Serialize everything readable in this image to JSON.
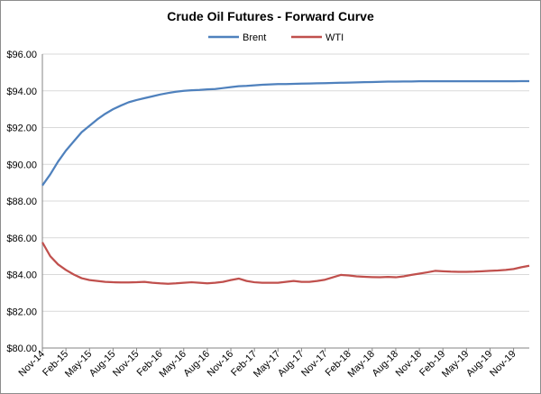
{
  "chart_data": {
    "type": "line",
    "title": "Crude Oil Futures - Forward Curve",
    "legend_position": "top-center",
    "grid": true,
    "ylim": [
      80,
      96
    ],
    "ytick_labels": [
      "$80.00",
      "$82.00",
      "$84.00",
      "$86.00",
      "$88.00",
      "$90.00",
      "$92.00",
      "$94.00",
      "$96.00"
    ],
    "yticks": [
      80,
      82,
      84,
      86,
      88,
      90,
      92,
      94,
      96
    ],
    "xtick_labels": [
      "Nov-14",
      "Feb-15",
      "May-15",
      "Aug-15",
      "Nov-15",
      "Feb-16",
      "May-16",
      "Aug-16",
      "Nov-16",
      "Feb-17",
      "May-17",
      "Aug-17",
      "Nov-17",
      "Feb-18",
      "May-18",
      "Aug-18",
      "Nov-18",
      "Feb-19",
      "May-19",
      "Aug-19",
      "Nov-19"
    ],
    "x_start": "Nov-14",
    "x_count": 63,
    "xtick_every": 3,
    "series": [
      {
        "name": "Brent",
        "color": "#4f81bd",
        "values": [
          88.85,
          89.45,
          90.15,
          90.75,
          91.25,
          91.75,
          92.1,
          92.45,
          92.75,
          93.0,
          93.2,
          93.38,
          93.5,
          93.6,
          93.7,
          93.8,
          93.88,
          93.95,
          94.0,
          94.03,
          94.05,
          94.08,
          94.1,
          94.15,
          94.2,
          94.25,
          94.27,
          94.3,
          94.33,
          94.35,
          94.37,
          94.37,
          94.38,
          94.39,
          94.4,
          94.41,
          94.42,
          94.43,
          94.44,
          94.45,
          94.46,
          94.47,
          94.48,
          94.49,
          94.5,
          94.5,
          94.51,
          94.51,
          94.52,
          94.52,
          94.52,
          94.52,
          94.52,
          94.52,
          94.52,
          94.52,
          94.52,
          94.52,
          94.52,
          94.52,
          94.52,
          94.53,
          94.53
        ]
      },
      {
        "name": "WTI",
        "color": "#c0504d",
        "values": [
          85.75,
          85.0,
          84.55,
          84.25,
          84.0,
          83.8,
          83.7,
          83.65,
          83.6,
          83.58,
          83.57,
          83.57,
          83.58,
          83.6,
          83.55,
          83.52,
          83.5,
          83.52,
          83.55,
          83.58,
          83.55,
          83.52,
          83.55,
          83.6,
          83.7,
          83.78,
          83.65,
          83.58,
          83.55,
          83.55,
          83.55,
          83.6,
          83.65,
          83.6,
          83.6,
          83.65,
          83.72,
          83.85,
          83.98,
          83.95,
          83.9,
          83.88,
          83.86,
          83.85,
          83.87,
          83.85,
          83.9,
          83.98,
          84.05,
          84.12,
          84.2,
          84.18,
          84.16,
          84.15,
          84.15,
          84.16,
          84.18,
          84.2,
          84.22,
          84.25,
          84.3,
          84.4,
          84.48
        ]
      }
    ]
  }
}
